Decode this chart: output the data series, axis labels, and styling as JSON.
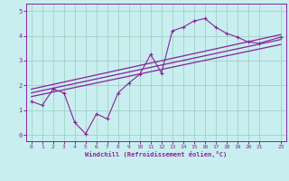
{
  "xlabel": "Windchill (Refroidissement éolien,°C)",
  "bg_color": "#c8eef0",
  "line_color": "#882299",
  "grid_color": "#99ccbb",
  "axis_bg": "#c8eef0",
  "xlim": [
    -0.5,
    23.5
  ],
  "ylim": [
    -0.25,
    5.3
  ],
  "xticks": [
    0,
    1,
    2,
    3,
    4,
    5,
    6,
    7,
    8,
    9,
    10,
    11,
    12,
    13,
    14,
    15,
    16,
    17,
    18,
    19,
    20,
    21,
    23
  ],
  "yticks": [
    0,
    1,
    2,
    3,
    4,
    5
  ],
  "series1_x": [
    0,
    1,
    2,
    3,
    4,
    5,
    6,
    7,
    8,
    9,
    10,
    11,
    12,
    13,
    14,
    15,
    16,
    17,
    18,
    19,
    20,
    21,
    23
  ],
  "series1_y": [
    1.35,
    1.2,
    1.85,
    1.7,
    0.5,
    0.05,
    0.85,
    0.65,
    1.7,
    2.1,
    2.45,
    3.25,
    2.5,
    4.2,
    4.35,
    4.6,
    4.7,
    4.35,
    4.1,
    3.95,
    3.75,
    3.7,
    3.95
  ],
  "series2_x": [
    0,
    23
  ],
  "series2_y": [
    1.85,
    4.05
  ],
  "series3_x": [
    0,
    23
  ],
  "series3_y": [
    1.7,
    3.85
  ],
  "series4_x": [
    0,
    23
  ],
  "series4_y": [
    1.55,
    3.65
  ]
}
